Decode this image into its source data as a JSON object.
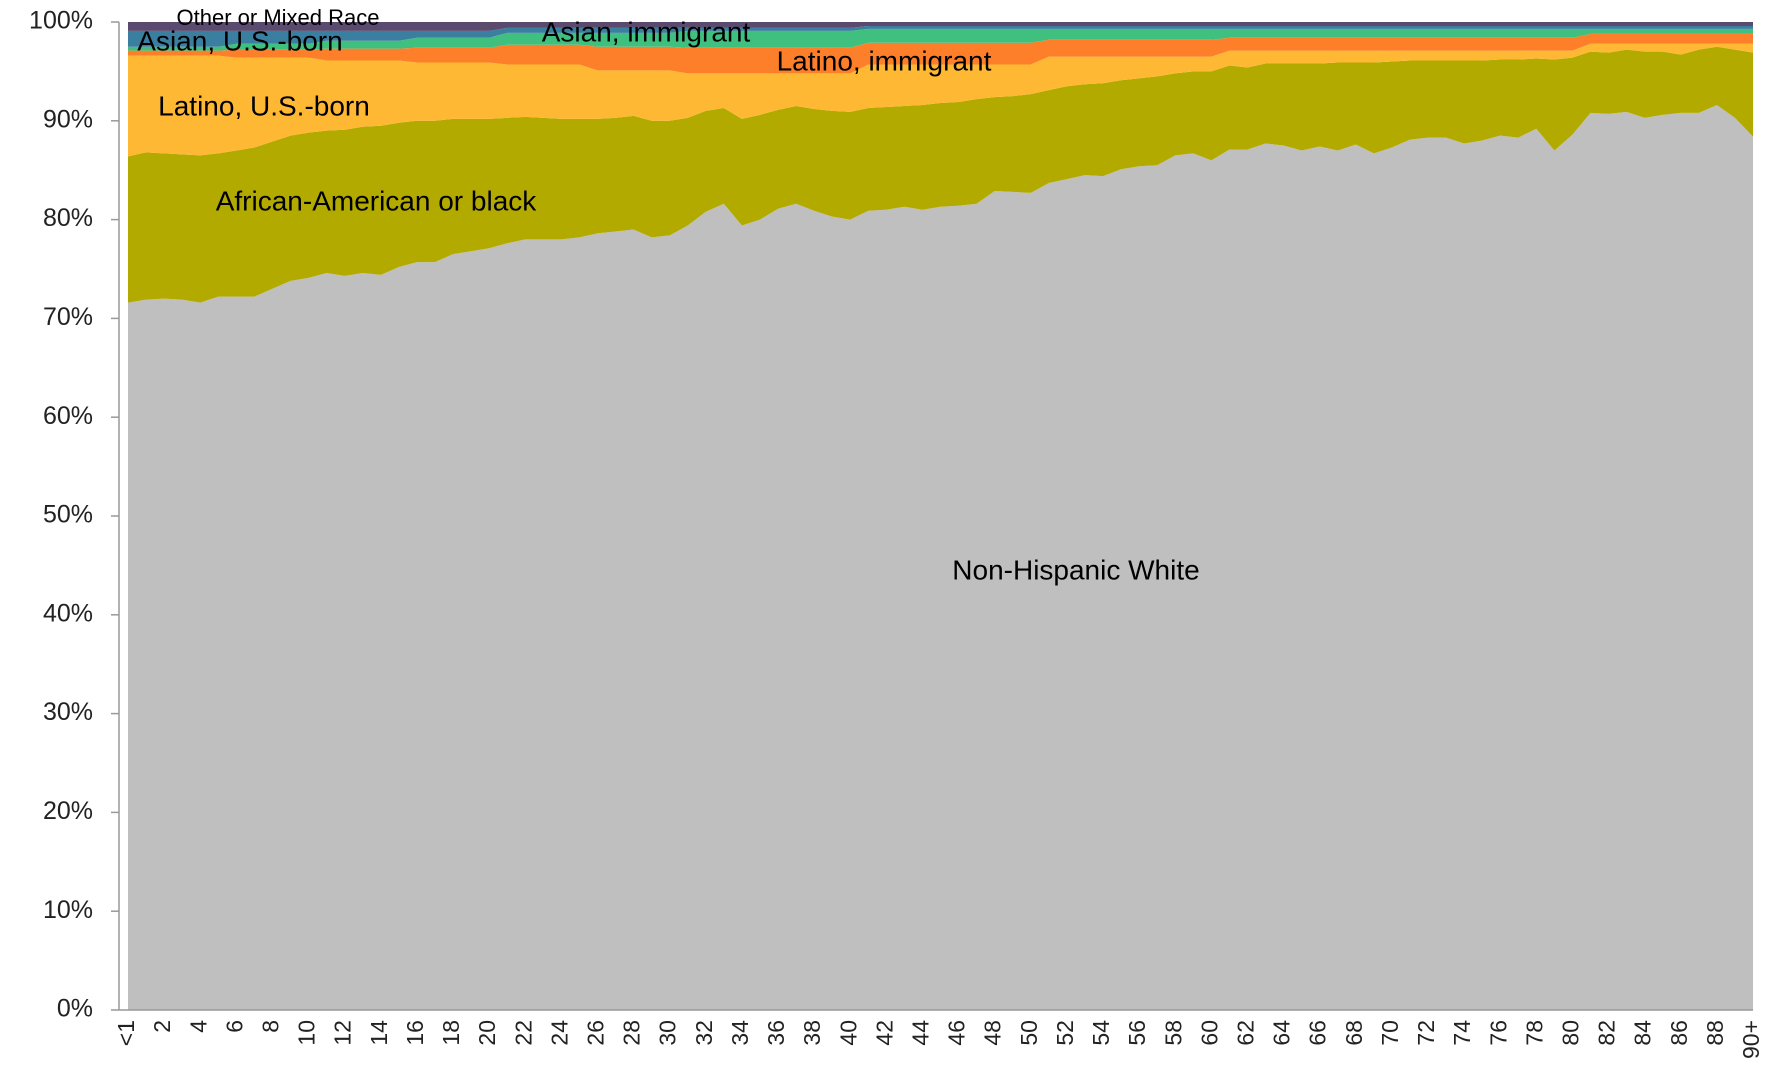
{
  "chart_data": {
    "type": "stacked-area",
    "categories": [
      "<1",
      null,
      "2",
      null,
      "4",
      null,
      "6",
      null,
      "8",
      null,
      "10",
      null,
      "12",
      null,
      "14",
      null,
      "16",
      null,
      "18",
      null,
      "20",
      null,
      "22",
      null,
      "24",
      null,
      "26",
      null,
      "28",
      null,
      "30",
      null,
      "32",
      null,
      "34",
      null,
      "36",
      null,
      "38",
      null,
      "40",
      null,
      "42",
      null,
      "44",
      null,
      "46",
      null,
      "48",
      null,
      "50",
      null,
      "52",
      null,
      "54",
      null,
      "56",
      null,
      "58",
      null,
      "60",
      null,
      "62",
      null,
      "64",
      null,
      "66",
      null,
      "68",
      null,
      "70",
      null,
      "72",
      null,
      "74",
      null,
      "76",
      null,
      "78",
      null,
      "80",
      null,
      "82",
      null,
      "84",
      null,
      "86",
      null,
      "88",
      null,
      "90+"
    ],
    "series": [
      {
        "name": "Non-Hispanic White",
        "color": "#bfbfbf",
        "values": [
          71.6,
          71.9,
          72,
          71.9,
          71.6,
          72.2,
          72.2,
          72.2,
          73,
          73.8,
          74.1,
          74.6,
          74.3,
          74.6,
          74.4,
          75.2,
          75.7,
          75.7,
          76.5,
          76.8,
          77.1,
          77.6,
          78,
          78,
          78,
          78.2,
          78.6,
          78.8,
          79,
          78.2,
          78.4,
          79.4,
          80.8,
          81.6,
          79.4,
          80,
          81.1,
          81.6,
          80.9,
          80.3,
          80,
          80.9,
          81,
          81.3,
          81,
          81.3,
          81.4,
          81.6,
          82.9,
          82.8,
          82.7,
          83.7,
          84.1,
          84.5,
          84.4,
          85.1,
          85.4,
          85.5,
          86.5,
          86.7,
          86,
          87.1,
          87.1,
          87.7,
          87.5,
          87,
          87.4,
          87,
          87.6,
          86.7,
          87.3,
          88.1,
          88.3,
          88.3,
          87.7,
          88,
          88.5,
          88.3,
          89.2,
          87,
          88.6,
          90.8,
          90.7,
          90.9,
          90.3,
          90.6,
          90.8,
          90.8,
          91.6,
          90.3,
          88.4
        ]
      },
      {
        "name": "African-American or black",
        "color": "#b3aa00",
        "values": [
          14.8,
          14.9,
          14.7,
          14.7,
          14.9,
          14.5,
          14.8,
          15.1,
          14.9,
          14.7,
          14.7,
          14.4,
          14.8,
          14.8,
          15.1,
          14.6,
          14.3,
          14.3,
          13.7,
          13.4,
          13.1,
          12.7,
          12.4,
          12.3,
          12.2,
          12.0,
          11.6,
          11.5,
          11.5,
          11.8,
          11.6,
          10.9,
          10.2,
          9.7,
          10.8,
          10.6,
          10.0,
          9.9,
          10.3,
          10.7,
          10.9,
          10.4,
          10.4,
          10.2,
          10.6,
          10.5,
          10.5,
          10.6,
          9.5,
          9.7,
          10.0,
          9.4,
          9.4,
          9.2,
          9.4,
          9.0,
          8.9,
          9.0,
          8.3,
          8.3,
          9.0,
          8.5,
          8.3,
          8.1,
          8.3,
          8.8,
          8.4,
          8.9,
          8.3,
          9.2,
          8.7,
          8.0,
          7.8,
          7.8,
          8.4,
          8.1,
          7.7,
          7.9,
          7.1,
          9.2,
          7.8,
          6.2,
          6.2,
          6.3,
          6.7,
          6.4,
          5.9,
          6.4,
          5.9,
          6.9,
          8.5
        ]
      },
      {
        "name": "Latino, U.S.-born",
        "color": "#ffb833",
        "values": [
          10.2,
          9.8,
          9.9,
          10.0,
          10.1,
          9.9,
          9.4,
          9.1,
          8.5,
          7.9,
          7.6,
          7.1,
          7.0,
          6.7,
          6.6,
          6.3,
          5.9,
          5.9,
          5.7,
          5.7,
          5.7,
          5.4,
          5.3,
          5.4,
          5.5,
          5.5,
          4.9,
          4.8,
          4.6,
          5.1,
          5.1,
          4.5,
          3.8,
          3.5,
          4.6,
          4.2,
          3.7,
          3.3,
          3.6,
          3.8,
          3.9,
          4.4,
          4.3,
          4.2,
          4.1,
          3.9,
          3.8,
          3.5,
          3.3,
          3.2,
          3.0,
          3.4,
          3.0,
          2.8,
          2.7,
          2.4,
          2.2,
          2.0,
          1.7,
          1.5,
          1.5,
          1.5,
          1.7,
          1.3,
          1.3,
          1.3,
          1.3,
          1.2,
          1.2,
          1.2,
          1.1,
          1.0,
          1.0,
          1.0,
          1.0,
          1.0,
          0.9,
          0.9,
          0.8,
          0.9,
          0.7,
          0.8,
          0.9,
          0.6,
          0.8,
          0.8,
          1.1,
          0.6,
          0.3,
          0.6,
          0.9
        ]
      },
      {
        "name": "Latino, immigrant",
        "color": "#fd7f2a",
        "values": [
          0.5,
          0.5,
          0.5,
          0.5,
          0.5,
          0.5,
          0.8,
          0.8,
          0.8,
          0.8,
          0.8,
          1.2,
          1.2,
          1.2,
          1.2,
          1.2,
          1.5,
          1.5,
          1.5,
          1.5,
          1.5,
          2.0,
          2.0,
          2.0,
          2.0,
          2.0,
          2.4,
          2.4,
          2.4,
          2.4,
          2.4,
          2.6,
          2.6,
          2.6,
          2.6,
          2.6,
          2.6,
          2.6,
          2.6,
          2.6,
          2.6,
          2.2,
          2.2,
          2.2,
          2.2,
          2.2,
          2.2,
          2.2,
          2.2,
          2.2,
          2.2,
          1.7,
          1.7,
          1.7,
          1.7,
          1.7,
          1.7,
          1.7,
          1.7,
          1.7,
          1.7,
          1.3,
          1.3,
          1.3,
          1.3,
          1.3,
          1.3,
          1.3,
          1.3,
          1.3,
          1.3,
          1.3,
          1.3,
          1.3,
          1.3,
          1.3,
          1.3,
          1.3,
          1.3,
          1.3,
          1.3,
          1.0,
          1.0,
          1.0,
          1.0,
          1.0,
          1.0,
          1.0,
          1.0,
          1.0,
          1.0
        ]
      },
      {
        "name": "Asian, immigrant",
        "color": "#3fc07f",
        "values": [
          0.4,
          0.4,
          0.4,
          0.4,
          0.4,
          0.4,
          0.6,
          0.6,
          0.6,
          0.6,
          0.6,
          0.8,
          0.8,
          0.8,
          0.8,
          0.8,
          1.0,
          1.0,
          1.0,
          1.0,
          1.0,
          1.2,
          1.2,
          1.2,
          1.2,
          1.2,
          1.4,
          1.4,
          1.4,
          1.4,
          1.4,
          1.7,
          1.7,
          1.7,
          1.7,
          1.7,
          1.7,
          1.7,
          1.7,
          1.7,
          1.7,
          1.4,
          1.4,
          1.4,
          1.4,
          1.4,
          1.4,
          1.4,
          1.4,
          1.4,
          1.4,
          1.1,
          1.1,
          1.1,
          1.1,
          1.1,
          1.1,
          1.1,
          1.1,
          1.1,
          1.1,
          0.9,
          0.9,
          0.9,
          0.9,
          0.9,
          0.9,
          0.9,
          0.9,
          0.9,
          0.9,
          0.9,
          0.9,
          0.9,
          0.9,
          0.9,
          0.9,
          0.9,
          0.9,
          0.9,
          0.9,
          0.5,
          0.5,
          0.5,
          0.5,
          0.5,
          0.5,
          0.5,
          0.5,
          0.5,
          0.5
        ]
      },
      {
        "name": "Asian, U.S.-born",
        "color": "#3b7fa0",
        "values": [
          1.6,
          1.6,
          1.6,
          1.6,
          1.6,
          1.6,
          1.3,
          1.3,
          1.3,
          1.3,
          1.3,
          1.0,
          1.0,
          1.0,
          1.0,
          1.0,
          0.7,
          0.7,
          0.7,
          0.7,
          0.7,
          0.5,
          0.5,
          0.5,
          0.5,
          0.5,
          0.5,
          0.5,
          0.5,
          0.5,
          0.5,
          0.3,
          0.3,
          0.3,
          0.3,
          0.3,
          0.3,
          0.3,
          0.3,
          0.3,
          0.3,
          0.3,
          0.3,
          0.3,
          0.3,
          0.3,
          0.3,
          0.3,
          0.3,
          0.3,
          0.3,
          0.3,
          0.3,
          0.3,
          0.3,
          0.3,
          0.3,
          0.3,
          0.3,
          0.3,
          0.3,
          0.3,
          0.3,
          0.3,
          0.3,
          0.3,
          0.3,
          0.3,
          0.3,
          0.3,
          0.3,
          0.3,
          0.3,
          0.3,
          0.3,
          0.3,
          0.3,
          0.3,
          0.3,
          0.3,
          0.3,
          0.3,
          0.3,
          0.3,
          0.3,
          0.3,
          0.3,
          0.3,
          0.3,
          0.3,
          0.3
        ]
      },
      {
        "name": "Other or Mixed Race",
        "color": "#5a4a6e",
        "values": [
          0.9,
          0.9,
          0.9,
          0.9,
          0.9,
          0.9,
          0.9,
          0.9,
          0.9,
          0.9,
          0.9,
          0.9,
          0.9,
          0.9,
          0.9,
          0.9,
          0.9,
          0.9,
          0.9,
          0.9,
          0.9,
          0.6,
          0.6,
          0.6,
          0.6,
          0.6,
          0.6,
          0.6,
          0.6,
          0.6,
          0.6,
          0.6,
          0.6,
          0.6,
          0.6,
          0.6,
          0.6,
          0.6,
          0.6,
          0.6,
          0.6,
          0.4,
          0.4,
          0.4,
          0.4,
          0.4,
          0.4,
          0.4,
          0.4,
          0.4,
          0.4,
          0.4,
          0.4,
          0.4,
          0.4,
          0.4,
          0.4,
          0.4,
          0.4,
          0.4,
          0.4,
          0.4,
          0.4,
          0.4,
          0.4,
          0.4,
          0.4,
          0.4,
          0.4,
          0.4,
          0.4,
          0.4,
          0.4,
          0.4,
          0.4,
          0.4,
          0.4,
          0.4,
          0.4,
          0.4,
          0.4,
          0.4,
          0.4,
          0.4,
          0.4,
          0.4,
          0.4,
          0.4,
          0.4,
          0.4,
          0.4
        ]
      }
    ],
    "ylim": [
      0,
      100
    ],
    "yticks": [
      {
        "value": 0,
        "label": "0%"
      },
      {
        "value": 10,
        "label": "10%"
      },
      {
        "value": 20,
        "label": "20%"
      },
      {
        "value": 30,
        "label": "30%"
      },
      {
        "value": 40,
        "label": "40%"
      },
      {
        "value": 50,
        "label": "50%"
      },
      {
        "value": 60,
        "label": "60%"
      },
      {
        "value": 70,
        "label": "70%"
      },
      {
        "value": 80,
        "label": "80%"
      },
      {
        "value": 90,
        "label": "90%"
      },
      {
        "value": 100,
        "label": "100%"
      }
    ],
    "grid": false
  }
}
